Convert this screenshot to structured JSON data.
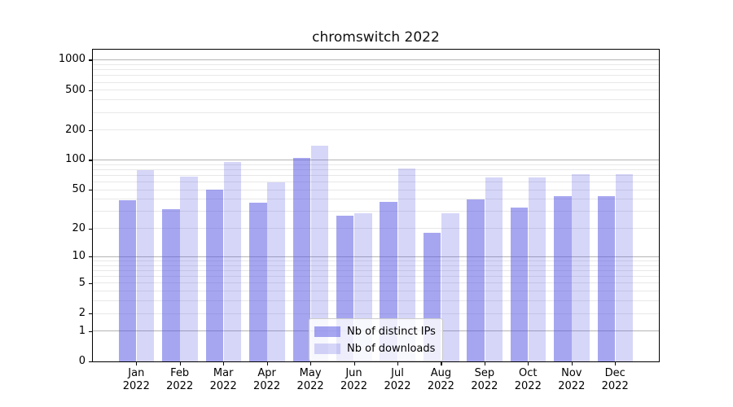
{
  "title": "chromswitch 2022",
  "chart_data": {
    "type": "bar",
    "title": "chromswitch 2022",
    "categories": [
      "Jan 2022",
      "Feb 2022",
      "Mar 2022",
      "Apr 2022",
      "May 2022",
      "Jun 2022",
      "Jul 2022",
      "Aug 2022",
      "Sep 2022",
      "Oct 2022",
      "Nov 2022",
      "Dec 2022"
    ],
    "series": [
      {
        "name": "Nb of distinct IPs",
        "color": "rgba(85,85,227,0.52)",
        "values": [
          39,
          32,
          50,
          37,
          105,
          27,
          38,
          18,
          40,
          33,
          43,
          43
        ]
      },
      {
        "name": "Nb of downloads",
        "color": "rgba(85,85,227,0.245)",
        "values": [
          79,
          68,
          95,
          60,
          140,
          29,
          82,
          29,
          67,
          67,
          72,
          72
        ]
      }
    ],
    "yscale": "log1p",
    "yticks": [
      0,
      1,
      2,
      5,
      10,
      20,
      50,
      100,
      200,
      500,
      1000
    ],
    "ytick_labels": [
      "0",
      "1",
      "2",
      "5",
      "10",
      "20",
      "50",
      "100",
      "200",
      "500",
      "1000"
    ],
    "ylim": [
      0,
      1280
    ],
    "xlabel": "",
    "ylabel": "",
    "grid": true,
    "legend_position": "lower center",
    "colors": {
      "bar_dark": "rgba(85,85,227,0.52)",
      "bar_light": "rgba(85,85,227,0.245)",
      "major_grid": "#b4b4b4",
      "minor_grid": "#e8e8e8",
      "spine": "#000000",
      "text": "#000000"
    }
  }
}
